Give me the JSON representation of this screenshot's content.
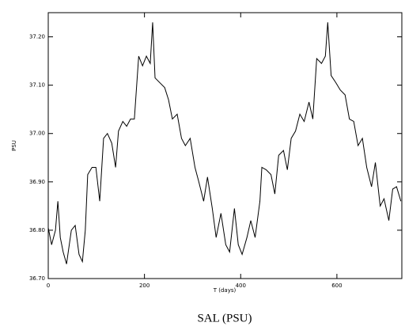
{
  "chart_data": {
    "type": "line",
    "title": "SAL (PSU)",
    "x_label": "T (days)",
    "y_label": "PSU",
    "x": [
      0,
      7,
      15,
      20,
      25,
      31,
      38,
      48,
      56,
      64,
      71,
      77,
      82,
      91,
      99,
      107,
      115,
      123,
      132,
      140,
      146,
      155,
      163,
      171,
      179,
      188,
      196,
      204,
      212,
      217,
      222,
      232,
      242,
      250,
      258,
      268,
      277,
      285,
      295,
      305,
      313,
      323,
      331,
      341,
      349,
      359,
      369,
      377,
      387,
      395,
      403,
      413,
      421,
      430,
      440,
      444,
      453,
      463,
      471,
      479,
      489,
      497,
      505,
      514,
      523,
      532,
      542,
      550,
      558,
      568,
      576,
      581,
      588,
      598,
      607,
      617,
      626,
      635,
      644,
      653,
      662,
      672,
      680,
      690,
      698,
      708,
      716,
      724,
      733
    ],
    "series": [
      {
        "name": "SAL",
        "color": "#000000",
        "values": [
          36.805,
          36.77,
          36.8,
          36.86,
          36.785,
          36.755,
          36.73,
          36.8,
          36.81,
          36.75,
          36.735,
          36.8,
          36.915,
          36.93,
          36.93,
          36.86,
          36.99,
          37.0,
          36.98,
          36.93,
          37.005,
          37.025,
          37.015,
          37.03,
          37.03,
          37.16,
          37.14,
          37.16,
          37.145,
          37.23,
          37.115,
          37.105,
          37.095,
          37.07,
          37.03,
          37.04,
          36.99,
          36.975,
          36.99,
          36.93,
          36.9,
          36.86,
          36.91,
          36.845,
          36.785,
          36.835,
          36.77,
          36.755,
          36.845,
          36.77,
          36.75,
          36.785,
          36.82,
          36.785,
          36.86,
          36.93,
          36.925,
          36.915,
          36.875,
          36.955,
          36.965,
          36.925,
          36.99,
          37.005,
          37.04,
          37.025,
          37.065,
          37.03,
          37.155,
          37.145,
          37.16,
          37.23,
          37.12,
          37.105,
          37.09,
          37.08,
          37.03,
          37.025,
          36.975,
          36.99,
          36.93,
          36.89,
          36.94,
          36.85,
          36.865,
          36.82,
          36.885,
          36.89,
          36.86
        ]
      }
    ],
    "xlim": [
      0,
      735
    ],
    "xticks": [
      0,
      200,
      400,
      600
    ],
    "ylim": [
      36.7,
      37.25
    ],
    "yticks": [
      {
        "value": 36.7,
        "label": "36.70"
      },
      {
        "value": 36.8,
        "label": "36.80"
      },
      {
        "value": 36.9,
        "label": "36.90"
      },
      {
        "value": 37.0,
        "label": "37.00"
      },
      {
        "value": 37.1,
        "label": "37.10"
      },
      {
        "value": 37.2,
        "label": "37.20"
      }
    ]
  }
}
